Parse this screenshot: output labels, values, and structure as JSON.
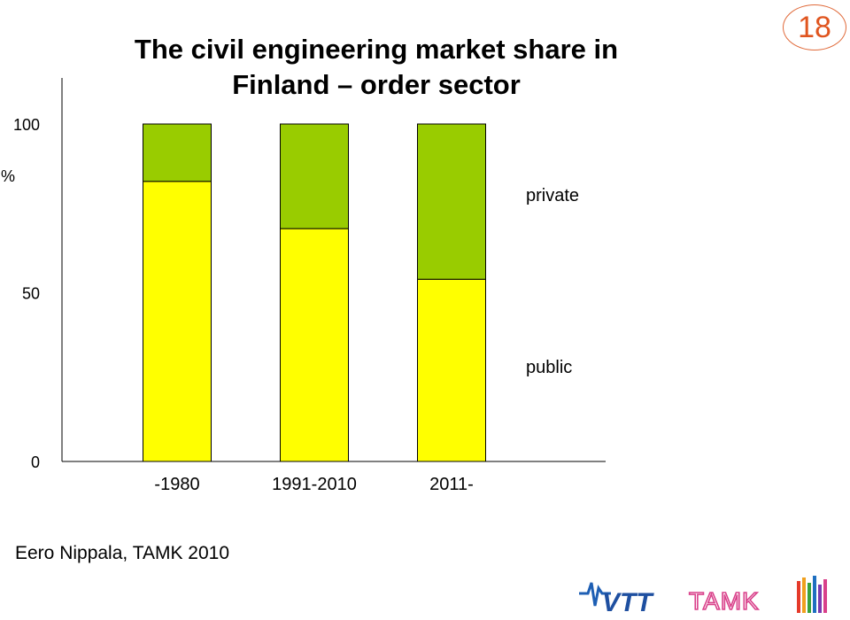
{
  "slide": {
    "title_line1": "The civil engineering market share in",
    "title_line2": "Finland – order sector",
    "page_number": "18",
    "credit": "Eero Nippala, TAMK 2010",
    "logos": [
      "VTT",
      "TAMK"
    ]
  },
  "chart_data": {
    "type": "bar",
    "stacked": true,
    "categories": [
      "-1980",
      "1991-2010",
      "2011-"
    ],
    "series": [
      {
        "name": "public",
        "values": [
          83,
          69,
          54
        ],
        "color": "#ffff00"
      },
      {
        "name": "private",
        "values": [
          17,
          31,
          46
        ],
        "color": "#99cc00"
      }
    ],
    "y_ticks": [
      "0",
      "50",
      "100"
    ],
    "ylabel": "%",
    "ylim": [
      0,
      100
    ],
    "grid": false,
    "legend": "series labels at right of bars"
  }
}
